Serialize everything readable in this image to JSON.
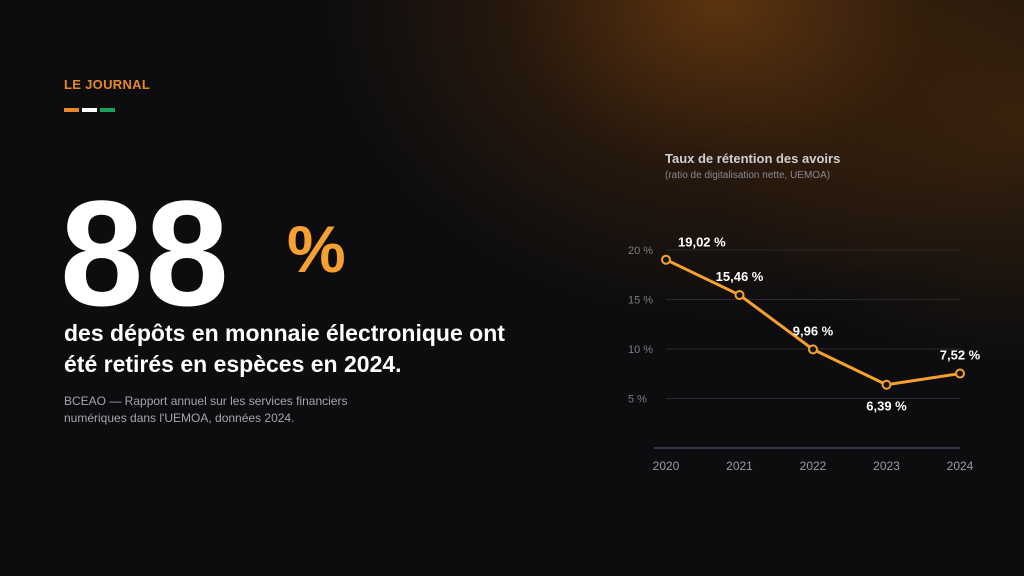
{
  "header": {
    "kicker": "LE JOURNAL",
    "flag_colors": [
      "#e8872d",
      "#ffffff",
      "#1aa35a"
    ]
  },
  "stat": {
    "value": "88",
    "unit": "%",
    "headline": "des dépôts en monnaie électronique ont été retirés en espèces en 2024.",
    "source": "BCEAO — Rapport annuel sur les services financiers numériques dans l'UEMOA, données 2024."
  },
  "colors": {
    "accent": "#f5a030",
    "text": "#ffffff",
    "muted": "#a5a5ab",
    "background": "#0d0d0f"
  },
  "chart_data": {
    "type": "line",
    "title": "Taux de rétention des avoirs",
    "subtitle": "(ratio de digitalisation nette, UEMOA)",
    "x": [
      "2020",
      "2021",
      "2022",
      "2023",
      "2024"
    ],
    "series": [
      {
        "values": [
          19.02,
          15.46,
          9.96,
          6.39,
          7.52
        ],
        "labels": [
          "19,02 %",
          "15,46 %",
          "9,96 %",
          "6,39 %",
          "7,52 %"
        ]
      }
    ],
    "y_ticks": [
      20,
      15,
      10,
      5
    ],
    "y_tick_labels": [
      "20 %",
      "15 %",
      "10 %",
      "5 %"
    ],
    "ylim": [
      0,
      20
    ],
    "grid": true,
    "legend": "none",
    "line_color": "#f5a030"
  }
}
